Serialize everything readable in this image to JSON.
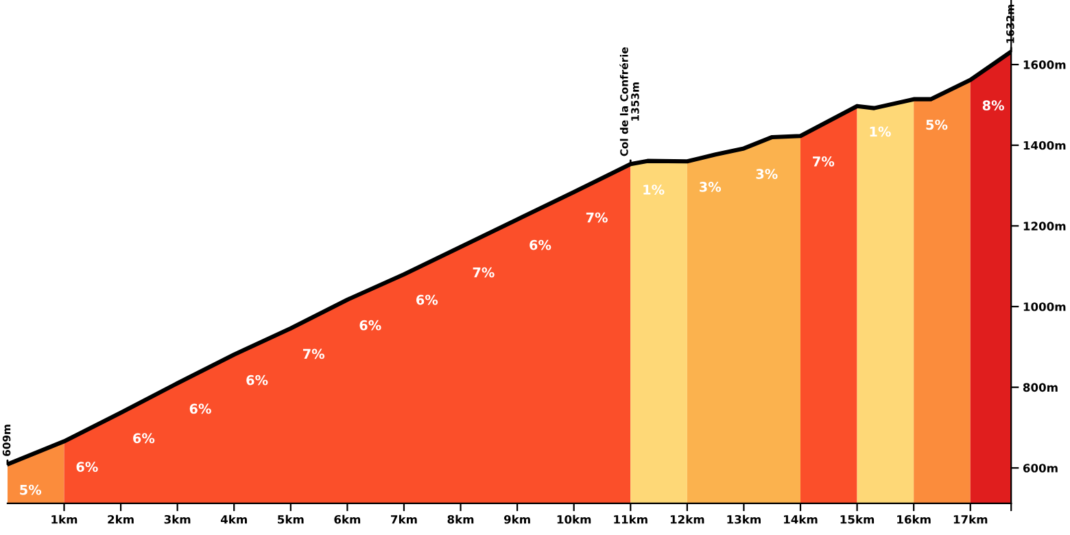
{
  "chart_data": {
    "type": "area",
    "series": [
      {
        "color": "#fb8c3c",
        "x": [
          0,
          1
        ],
        "values": [
          609,
          666
        ]
      },
      {
        "color": "#fb4f2a",
        "x": [
          1,
          2,
          3,
          4,
          5,
          6,
          7,
          8,
          9,
          10,
          11
        ],
        "values": [
          666,
          737,
          810,
          881,
          946,
          1017,
          1080,
          1148,
          1216,
          1284,
          1353
        ]
      },
      {
        "color": "#fed877",
        "x": [
          11,
          11.3,
          12
        ],
        "values": [
          1353,
          1361,
          1360
        ]
      },
      {
        "color": "#fbb24e",
        "x": [
          12,
          12.5,
          13,
          13.5,
          14
        ],
        "values": [
          1360,
          1377,
          1392,
          1420,
          1423
        ]
      },
      {
        "color": "#fb4f2a",
        "x": [
          14,
          14.5,
          15
        ],
        "values": [
          1423,
          1460,
          1497
        ]
      },
      {
        "color": "#fed877",
        "x": [
          15,
          15.3,
          16
        ],
        "values": [
          1497,
          1492,
          1514
        ]
      },
      {
        "color": "#fb8c3c",
        "x": [
          16,
          16.3,
          17
        ],
        "values": [
          1514,
          1514,
          1562
        ]
      },
      {
        "color": "#e01e1e",
        "x": [
          17,
          17.72
        ],
        "values": [
          1562,
          1632
        ]
      },
      {
        "type": "line",
        "color": "#000000",
        "x": [
          0,
          1,
          2,
          3,
          4,
          5,
          6,
          7,
          8,
          9,
          10,
          11,
          11.3,
          12,
          12.5,
          13,
          13.5,
          14,
          14.5,
          15,
          15.3,
          16,
          16.3,
          17,
          17.72
        ],
        "values": [
          609,
          666,
          737,
          810,
          881,
          946,
          1017,
          1080,
          1148,
          1216,
          1284,
          1353,
          1361,
          1360,
          1377,
          1392,
          1420,
          1423,
          1460,
          1497,
          1492,
          1514,
          1514,
          1562,
          1632
        ]
      }
    ],
    "annotations": [
      {
        "text": "609m",
        "x": 0,
        "y": 609
      },
      {
        "text": "Col de la Confrérie\n1353m",
        "x": 11,
        "y": 1353
      },
      {
        "text": "1632m",
        "x": 17.72,
        "y": 1632
      },
      "5%",
      "6%",
      "6%",
      "6%",
      "6%",
      "7%",
      "6%",
      "6%",
      "7%",
      "6%",
      "7%",
      "1%",
      "3%",
      "3%",
      "7%",
      "1%",
      "5%",
      "8%"
    ],
    "xlim": [
      0,
      17.72
    ],
    "ylim": [
      512,
      1760
    ],
    "xticks": [
      {
        "value": 1,
        "label": "1km"
      },
      {
        "value": 2,
        "label": "2km"
      },
      {
        "value": 3,
        "label": "3km"
      },
      {
        "value": 4,
        "label": "4km"
      },
      {
        "value": 5,
        "label": "5km"
      },
      {
        "value": 6,
        "label": "6km"
      },
      {
        "value": 7,
        "label": "7km"
      },
      {
        "value": 8,
        "label": "8km"
      },
      {
        "value": 9,
        "label": "9km"
      },
      {
        "value": 10,
        "label": "10km"
      },
      {
        "value": 11,
        "label": "11km"
      },
      {
        "value": 12,
        "label": "12km"
      },
      {
        "value": 13,
        "label": "13km"
      },
      {
        "value": 14,
        "label": "14km"
      },
      {
        "value": 15,
        "label": "15km"
      },
      {
        "value": 16,
        "label": "16km"
      },
      {
        "value": 17,
        "label": "17km"
      },
      {
        "value": 17.72,
        "label": null
      }
    ],
    "yticks": [
      {
        "value": 600,
        "label": "600m"
      },
      {
        "value": 800,
        "label": "800m"
      },
      {
        "value": 1000,
        "label": "1000m"
      },
      {
        "value": 1200,
        "label": "1200m"
      },
      {
        "value": 1400,
        "label": "1400m"
      },
      {
        "value": 1600,
        "label": "1600m"
      }
    ],
    "grid": false,
    "legend": false
  }
}
